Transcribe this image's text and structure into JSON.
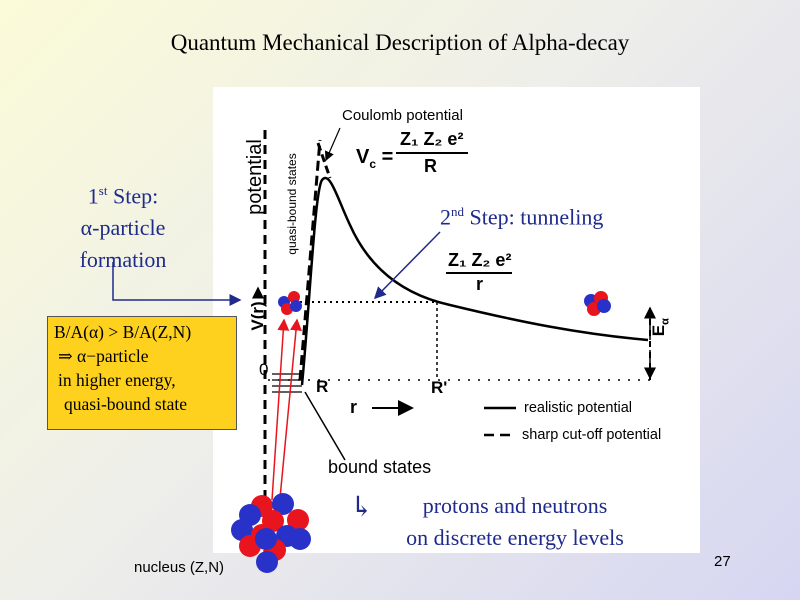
{
  "slide": {
    "title": "Quantum Mechanical Description of Alpha-decay",
    "page_number": "27"
  },
  "step1": {
    "superscript": "st",
    "number": "1",
    "step_word": "Step:",
    "line2": "α-particle",
    "line3": "formation"
  },
  "step2": {
    "number": "2",
    "superscript": "nd",
    "text": "Step: tunneling"
  },
  "binding_box": {
    "line1": "B/A(α) > B/A(Z,N)",
    "line2": "α−particle",
    "line3": "in higher energy,",
    "line4": "quasi-bound state",
    "arrow_glyph": "⇒"
  },
  "diagram": {
    "coulomb_label": "Coulomb potential",
    "formula_left": "V",
    "formula_sub": "c",
    "formula_eq": "=",
    "formula_numerator": "Z₁ Z₂ e²",
    "formula_denominator": "R",
    "formula2_numerator": "Z₁ Z₂ e²",
    "formula2_denominator": "r",
    "y_axis_label": "potential",
    "quasi_label": "quasi-bound states",
    "v_label": "V(r)",
    "zero_label": "0",
    "r_label_R": "R",
    "r_label_Rprime": "R'",
    "r_axis_label": "r",
    "e_alpha_label": "E",
    "e_alpha_sub": "α",
    "legend_realistic": "realistic potential",
    "legend_cutoff": "sharp cut-off potential",
    "bound_states_label": "bound states"
  },
  "protons": {
    "line1": "protons and neutrons",
    "line2": "on discrete energy levels",
    "arrow_glyph": "↳"
  },
  "nucleus_label": "nucleus (Z,N)",
  "colors": {
    "proton": "#e8141e",
    "neutron": "#2832c8",
    "accent_text": "#1e2a8c",
    "box_fill": "#fdd11e"
  }
}
